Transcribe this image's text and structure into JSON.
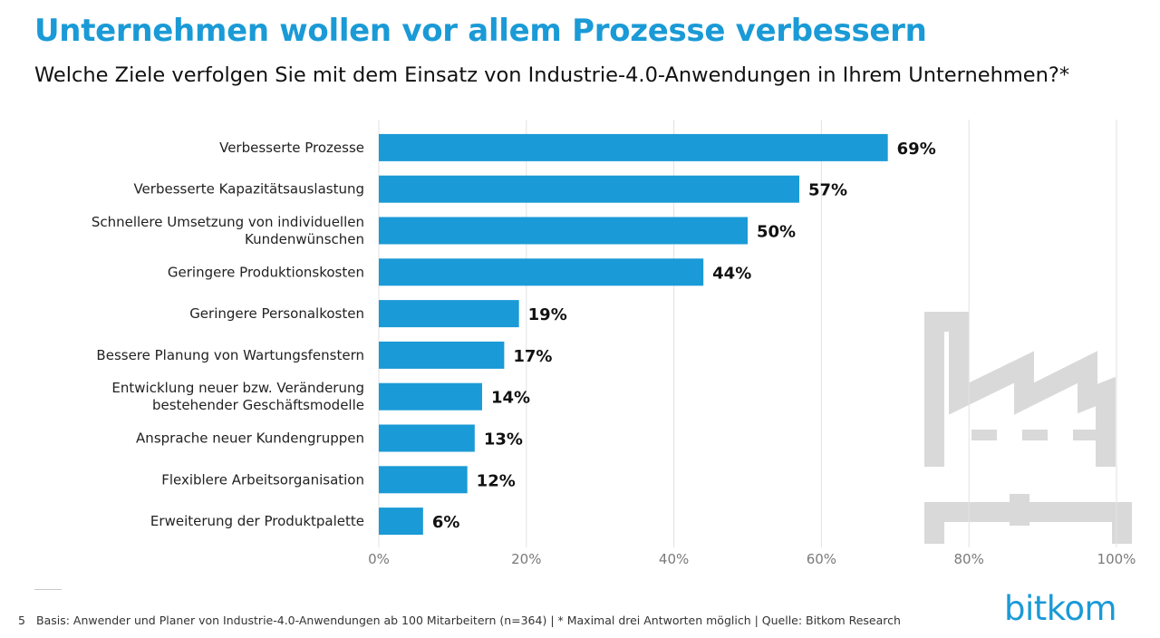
{
  "header": {
    "title": "Unternehmen wollen vor allem Prozesse verbessern",
    "subtitle": "Welche Ziele verfolgen Sie mit dem Einsatz von Industrie-4.0-Anwendungen in Ihrem Unternehmen?*"
  },
  "chart_data": {
    "type": "bar",
    "orientation": "horizontal",
    "categories": [
      [
        "Verbesserte Prozesse"
      ],
      [
        "Verbesserte Kapazitätsauslastung"
      ],
      [
        "Schnellere Umsetzung von individuellen",
        "Kundenwünschen"
      ],
      [
        "Geringere Produktionskosten"
      ],
      [
        "Geringere Personalkosten"
      ],
      [
        "Bessere Planung von Wartungsfenstern"
      ],
      [
        "Entwicklung neuer bzw. Veränderung",
        "bestehender Geschäftsmodelle"
      ],
      [
        "Ansprache neuer Kundengruppen"
      ],
      [
        "Flexiblere Arbeitsorganisation"
      ],
      [
        "Erweiterung der Produktpalette"
      ]
    ],
    "values": [
      69,
      57,
      50,
      44,
      19,
      17,
      14,
      13,
      12,
      6
    ],
    "value_labels": [
      "69%",
      "57%",
      "50%",
      "44%",
      "19%",
      "17%",
      "14%",
      "13%",
      "12%",
      "6%"
    ],
    "xlim": [
      0,
      100
    ],
    "x_ticks": [
      0,
      20,
      40,
      60,
      80,
      100
    ],
    "x_tick_labels": [
      "0%",
      "20%",
      "40%",
      "60%",
      "80%",
      "100%"
    ],
    "grid": "vertical",
    "bar_color": "#1a9ad6"
  },
  "footer": {
    "page_number": "5",
    "note": "Basis: Anwender und Planer von Industrie-4.0-Anwendungen ab 100 Mitarbeitern (n=364) | * Maximal drei Antworten möglich | Quelle: Bitkom Research",
    "logo": "bitkom"
  },
  "decoration": {
    "background_icon": "factory-icon"
  }
}
